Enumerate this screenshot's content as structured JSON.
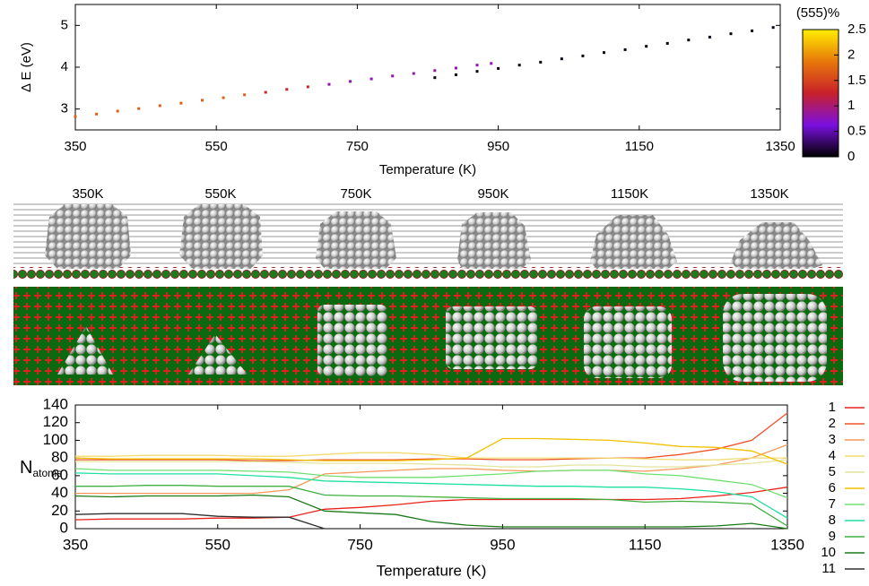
{
  "chart_data": [
    {
      "type": "scatter",
      "ylabel": "Δ E (eV)",
      "xlabel": "Temperature (K)",
      "xlim": [
        350,
        1350
      ],
      "xticks": [
        350,
        550,
        750,
        950,
        1150,
        1350
      ],
      "ylim": [
        2.5,
        5.5
      ],
      "yticks": [
        3,
        4,
        5
      ],
      "series": [
        {
          "x": [
            350,
            380,
            410,
            440,
            470,
            500,
            530,
            560,
            590,
            620,
            650,
            680,
            710,
            740,
            770,
            800,
            830,
            860,
            890,
            920,
            940,
            860,
            890,
            920,
            950,
            980,
            1010,
            1040,
            1070,
            1100,
            1130,
            1160,
            1190,
            1220,
            1250,
            1280,
            1310,
            1340
          ],
          "y": [
            2.82,
            2.88,
            2.95,
            3.01,
            3.08,
            3.14,
            3.21,
            3.27,
            3.34,
            3.4,
            3.47,
            3.53,
            3.59,
            3.66,
            3.72,
            3.79,
            3.85,
            3.92,
            3.98,
            4.05,
            4.09,
            3.75,
            3.82,
            3.9,
            3.97,
            4.05,
            4.12,
            4.2,
            4.27,
            4.35,
            4.42,
            4.5,
            4.57,
            4.65,
            4.72,
            4.8,
            4.87,
            4.95
          ],
          "c": [
            1.7,
            1.7,
            1.7,
            1.7,
            1.7,
            1.7,
            1.7,
            1.7,
            1.7,
            1.3,
            1.3,
            1.3,
            0.8,
            0.8,
            0.8,
            0.8,
            0.8,
            0.8,
            0.8,
            0.8,
            0.8,
            0.05,
            0.05,
            0.05,
            0.05,
            0.05,
            0.05,
            0.05,
            0.05,
            0.05,
            0.05,
            0.05,
            0.05,
            0.05,
            0.05,
            0.05,
            0.05,
            0.05
          ]
        }
      ],
      "colorbar": {
        "title": "(555)%",
        "clim": [
          0,
          2.5
        ],
        "ticks": [
          0,
          0.5,
          1,
          1.5,
          2,
          2.5
        ],
        "colormap": [
          "#000000",
          "#7a10e0",
          "#c8202a",
          "#e8780a",
          "#ffee00"
        ]
      }
    },
    {
      "type": "line",
      "ylabel": "N",
      "ylabel_sub": "atoms",
      "xlabel": "Temperature (K)",
      "xlim": [
        350,
        1350
      ],
      "xticks": [
        350,
        550,
        750,
        950,
        1150,
        1350
      ],
      "ylim": [
        0,
        140
      ],
      "yticks": [
        0,
        20,
        40,
        60,
        80,
        100,
        120,
        140
      ],
      "legend": "right",
      "x": [
        350,
        400,
        450,
        500,
        550,
        600,
        650,
        700,
        750,
        800,
        850,
        900,
        950,
        1000,
        1050,
        1100,
        1150,
        1200,
        1250,
        1300,
        1350
      ],
      "series": [
        {
          "name": "1",
          "color": "#e8231a",
          "values": [
            10,
            11,
            11,
            11,
            12,
            12,
            13,
            22,
            24,
            27,
            31,
            33,
            33,
            33,
            33,
            33,
            33,
            34,
            37,
            41,
            47
          ]
        },
        {
          "name": "2",
          "color": "#f0502a",
          "values": [
            78,
            78,
            78,
            78,
            78,
            77,
            77,
            78,
            78,
            78,
            79,
            79,
            78,
            78,
            79,
            80,
            80,
            84,
            90,
            100,
            131
          ]
        },
        {
          "name": "3",
          "color": "#f59a5a",
          "values": [
            40,
            40,
            40,
            40,
            40,
            40,
            44,
            62,
            64,
            66,
            68,
            68,
            66,
            65,
            66,
            66,
            65,
            68,
            72,
            80,
            95
          ]
        },
        {
          "name": "4",
          "color": "#f2dc70",
          "values": [
            82,
            82,
            83,
            83,
            83,
            82,
            82,
            84,
            86,
            86,
            84,
            80,
            80,
            80,
            80,
            80,
            79,
            78,
            78,
            80,
            80
          ]
        },
        {
          "name": "5",
          "color": "#e4e49a",
          "values": [
            76,
            76,
            76,
            76,
            76,
            76,
            75,
            74,
            74,
            74,
            73,
            72,
            70,
            70,
            72,
            72,
            70,
            70,
            72,
            74,
            78
          ]
        },
        {
          "name": "6",
          "color": "#f0c000",
          "values": [
            80,
            79,
            79,
            79,
            79,
            79,
            78,
            77,
            77,
            77,
            78,
            80,
            102,
            102,
            101,
            100,
            97,
            93,
            92,
            88,
            73
          ]
        },
        {
          "name": "7",
          "color": "#70e070",
          "values": [
            68,
            66,
            66,
            66,
            66,
            65,
            64,
            60,
            58,
            58,
            58,
            60,
            62,
            65,
            66,
            66,
            62,
            60,
            55,
            50,
            35
          ]
        },
        {
          "name": "8",
          "color": "#20e0a0",
          "values": [
            63,
            62,
            62,
            62,
            62,
            60,
            58,
            54,
            53,
            52,
            51,
            50,
            49,
            48,
            48,
            47,
            47,
            45,
            42,
            36,
            12
          ]
        },
        {
          "name": "9",
          "color": "#40b040",
          "values": [
            48,
            48,
            49,
            49,
            48,
            48,
            48,
            38,
            37,
            37,
            36,
            35,
            34,
            34,
            34,
            33,
            30,
            31,
            30,
            28,
            3
          ]
        },
        {
          "name": "10",
          "color": "#1a7a1a",
          "values": [
            37,
            36,
            37,
            37,
            37,
            38,
            36,
            20,
            18,
            16,
            8,
            4,
            2,
            2,
            2,
            2,
            2,
            2,
            3,
            6,
            0
          ]
        },
        {
          "name": "11",
          "color": "#303030",
          "values": [
            16,
            17,
            17,
            17,
            14,
            13,
            13,
            0,
            null,
            null,
            null,
            null,
            null,
            null,
            null,
            null,
            null,
            null,
            null,
            null,
            null
          ]
        }
      ]
    }
  ],
  "panels": {
    "labels": [
      "350K",
      "550K",
      "750K",
      "950K",
      "1150K",
      "1350K"
    ]
  }
}
